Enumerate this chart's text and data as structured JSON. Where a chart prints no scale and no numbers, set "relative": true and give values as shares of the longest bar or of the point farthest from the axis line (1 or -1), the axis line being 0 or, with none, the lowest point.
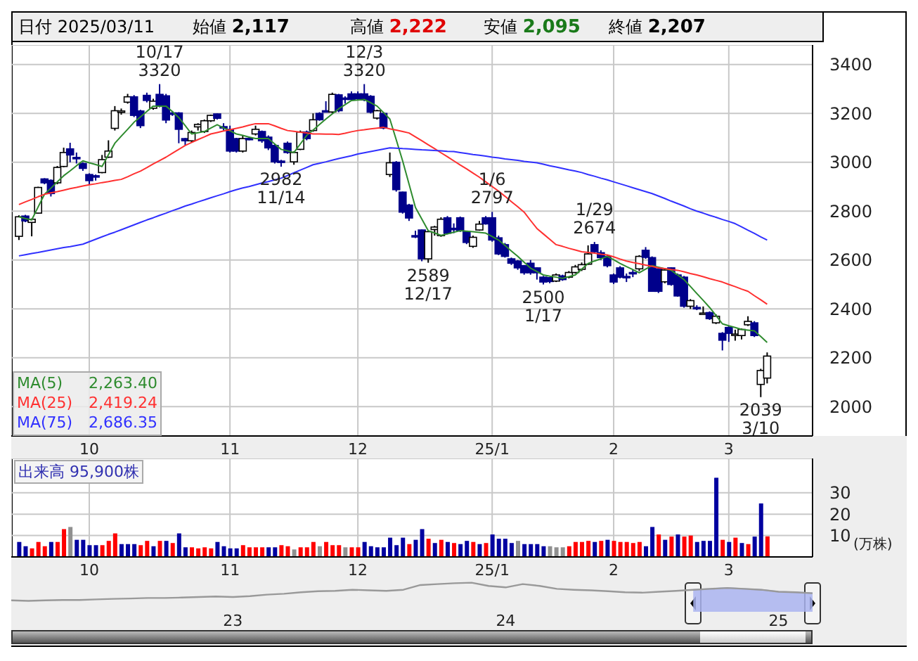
{
  "chart_data": [
    {
      "type": "other",
      "annotations": [
        "日付 2025/03/11",
        "始値 2,117",
        "高値 2,222",
        "安値 2,095",
        "終値 2,207"
      ]
    },
    {
      "type": "candlestick",
      "categories": [
        null,
        null,
        null,
        null,
        null,
        null,
        null,
        null,
        null,
        null,
        null,
        "10",
        null,
        null,
        null,
        null,
        null,
        null,
        null,
        null,
        null,
        null,
        null,
        null,
        null,
        null,
        null,
        null,
        null,
        null,
        null,
        null,
        null,
        "11",
        null,
        null,
        null,
        null,
        null,
        null,
        null,
        null,
        null,
        null,
        null,
        null,
        null,
        null,
        null,
        null,
        null,
        null,
        null,
        "12",
        null,
        null,
        null,
        null,
        null,
        null,
        null,
        null,
        null,
        null,
        null,
        null,
        null,
        null,
        null,
        null,
        null,
        null,
        null,
        null,
        "25/1",
        null,
        null,
        null,
        null,
        null,
        null,
        null,
        null,
        null,
        null,
        null,
        null,
        null,
        null,
        null,
        null,
        null,
        null,
        "2",
        null,
        null,
        null,
        null,
        null,
        null,
        null,
        null,
        null,
        null,
        null,
        null,
        null,
        null,
        null,
        null,
        null,
        "3",
        null,
        null,
        null,
        null,
        null,
        null
      ],
      "ohlc": [
        [
          2697,
          2783,
          2682,
          2777
        ],
        [
          2780,
          2785,
          2755,
          2760
        ],
        [
          2754,
          2770,
          2697,
          2767
        ],
        [
          2792,
          2900,
          2790,
          2897
        ],
        [
          2932,
          2935,
          2910,
          2916
        ],
        [
          2926,
          2930,
          2860,
          2872
        ],
        [
          2916,
          2985,
          2910,
          2979
        ],
        [
          2983,
          3060,
          2980,
          3040
        ],
        [
          3055,
          3080,
          3000,
          3030
        ],
        [
          3020,
          3040,
          2995,
          3015
        ],
        [
          2995,
          3000,
          2965,
          2975
        ],
        [
          2950,
          2955,
          2910,
          2925
        ],
        [
          2945,
          2950,
          2925,
          2940
        ],
        [
          2958,
          3030,
          2955,
          3011
        ],
        [
          3021,
          3090,
          3018,
          3046
        ],
        [
          3139,
          3230,
          3130,
          3211
        ],
        [
          3207,
          3220,
          3195,
          3210
        ],
        [
          3246,
          3280,
          3240,
          3268
        ],
        [
          3268,
          3275,
          3185,
          3192
        ],
        [
          3210,
          3215,
          3140,
          3150
        ],
        [
          3274,
          3285,
          3245,
          3253
        ],
        [
          3221,
          3260,
          3215,
          3250
        ],
        [
          3278,
          3320,
          3225,
          3230
        ],
        [
          3272,
          3280,
          3160,
          3173
        ],
        [
          3202,
          3210,
          3190,
          3200
        ],
        [
          3202,
          3205,
          3078,
          3135
        ],
        [
          3097,
          3100,
          3070,
          3088
        ],
        [
          3088,
          3130,
          3080,
          3122
        ],
        [
          3145,
          3160,
          3130,
          3155
        ],
        [
          3126,
          3175,
          3120,
          3170
        ],
        [
          3170,
          3195,
          3165,
          3192
        ],
        [
          3198,
          3200,
          3175,
          3180
        ],
        [
          3146,
          3160,
          3130,
          3144
        ],
        [
          3135,
          3150,
          3040,
          3046
        ],
        [
          3097,
          3100,
          3040,
          3046
        ],
        [
          3046,
          3110,
          3040,
          3097
        ],
        [
          3098,
          3105,
          3090,
          3096
        ],
        [
          3116,
          3150,
          3110,
          3135
        ],
        [
          3126,
          3130,
          3080,
          3088
        ],
        [
          3103,
          3110,
          3050,
          3059
        ],
        [
          3069,
          3075,
          2995,
          3002
        ],
        [
          3005,
          3010,
          2982,
          3003
        ],
        [
          3078,
          3085,
          3035,
          3040
        ],
        [
          3002,
          3045,
          2990,
          3040
        ],
        [
          3053,
          3130,
          3050,
          3124
        ],
        [
          3124,
          3130,
          3090,
          3097
        ],
        [
          3130,
          3200,
          3125,
          3174
        ],
        [
          3200,
          3205,
          3170,
          3174
        ],
        [
          3211,
          3250,
          3205,
          3209
        ],
        [
          3206,
          3285,
          3200,
          3278
        ],
        [
          3276,
          3280,
          3205,
          3211
        ],
        [
          3263,
          3270,
          3240,
          3262
        ],
        [
          3280,
          3290,
          3250,
          3257
        ],
        [
          3280,
          3290,
          3255,
          3260
        ],
        [
          3280,
          3320,
          3250,
          3255
        ],
        [
          3270,
          3275,
          3200,
          3205
        ],
        [
          3181,
          3215,
          3175,
          3211
        ],
        [
          3200,
          3205,
          3135,
          3140
        ],
        [
          2950,
          3040,
          2940,
          2998
        ],
        [
          3000,
          3005,
          2880,
          2888
        ],
        [
          2878,
          2880,
          2790,
          2796
        ],
        [
          2825,
          2830,
          2760,
          2772
        ],
        [
          2700,
          2720,
          2690,
          2698
        ],
        [
          2723,
          2725,
          2595,
          2605
        ],
        [
          2605,
          2720,
          2589,
          2716
        ],
        [
          2725,
          2740,
          2700,
          2735
        ],
        [
          2700,
          2775,
          2695,
          2767
        ],
        [
          2773,
          2780,
          2705,
          2710
        ],
        [
          2730,
          2750,
          2710,
          2728
        ],
        [
          2773,
          2778,
          2715,
          2720
        ],
        [
          2716,
          2720,
          2665,
          2672
        ],
        [
          2656,
          2700,
          2650,
          2693
        ],
        [
          2723,
          2760,
          2720,
          2747
        ],
        [
          2773,
          2780,
          2745,
          2748
        ],
        [
          2773,
          2797,
          2675,
          2682
        ],
        [
          2691,
          2700,
          2620,
          2625
        ],
        [
          2663,
          2670,
          2610,
          2615
        ],
        [
          2605,
          2610,
          2580,
          2587
        ],
        [
          2596,
          2600,
          2560,
          2568
        ],
        [
          2577,
          2580,
          2540,
          2548
        ],
        [
          2587,
          2600,
          2540,
          2548
        ],
        [
          2568,
          2570,
          2520,
          2548
        ],
        [
          2530,
          2535,
          2500,
          2510
        ],
        [
          2528,
          2530,
          2505,
          2512
        ],
        [
          2514,
          2545,
          2510,
          2539
        ],
        [
          2535,
          2540,
          2515,
          2520
        ],
        [
          2530,
          2555,
          2525,
          2549
        ],
        [
          2549,
          2580,
          2545,
          2572
        ],
        [
          2562,
          2590,
          2555,
          2581
        ],
        [
          2583,
          2660,
          2580,
          2625
        ],
        [
          2663,
          2674,
          2630,
          2634
        ],
        [
          2630,
          2640,
          2600,
          2610
        ],
        [
          2615,
          2620,
          2570,
          2577
        ],
        [
          2539,
          2545,
          2502,
          2510
        ],
        [
          2568,
          2575,
          2525,
          2530
        ],
        [
          2533,
          2545,
          2510,
          2532
        ],
        [
          2549,
          2560,
          2530,
          2548
        ],
        [
          2564,
          2620,
          2555,
          2615
        ],
        [
          2640,
          2653,
          2605,
          2611
        ],
        [
          2610,
          2615,
          2470,
          2472
        ],
        [
          2564,
          2570,
          2465,
          2472
        ],
        [
          2511,
          2565,
          2505,
          2559
        ],
        [
          2568,
          2570,
          2495,
          2500
        ],
        [
          2539,
          2545,
          2450,
          2453
        ],
        [
          2530,
          2535,
          2405,
          2411
        ],
        [
          2411,
          2440,
          2400,
          2434
        ],
        [
          2406,
          2415,
          2395,
          2405
        ],
        [
          2382,
          2410,
          2375,
          2383
        ],
        [
          2385,
          2390,
          2355,
          2360
        ],
        [
          2343,
          2378,
          2338,
          2370
        ],
        [
          2300,
          2305,
          2230,
          2272
        ],
        [
          2324,
          2330,
          2265,
          2300
        ],
        [
          2296,
          2315,
          2270,
          2297
        ],
        [
          2291,
          2320,
          2275,
          2316
        ],
        [
          2335,
          2370,
          2330,
          2349
        ],
        [
          2343,
          2350,
          2285,
          2291
        ],
        [
          2091,
          2155,
          2039,
          2148
        ],
        [
          2117,
          2222,
          2095,
          2207
        ]
      ],
      "series": [
        {
          "name": "MA(5)",
          "type": "line",
          "color": "#2e8b2e",
          "values": [
            2777,
            2770,
            2764,
            2817,
            2869,
            2894,
            2920,
            2945,
            2965,
            2986,
            3006,
            2998,
            2991,
            2983,
            3031,
            3078,
            3107,
            3135,
            3164,
            3186,
            3208,
            3230,
            3230,
            3230,
            3207,
            3183,
            3150,
            3116,
            3121,
            3126,
            3140,
            3154,
            3141,
            3129,
            3116,
            3110,
            3103,
            3097,
            3097,
            3097,
            3075,
            3053,
            3047,
            3040,
            3075,
            3110,
            3132,
            3155,
            3177,
            3198,
            3219,
            3236,
            3253,
            3255,
            3257,
            3244,
            3230,
            3204,
            3177,
            3092,
            3006,
            2911,
            2815,
            2768,
            2720,
            2711,
            2701,
            2707,
            2714,
            2720,
            2718,
            2716,
            2713,
            2710,
            2696,
            2682,
            2660,
            2637,
            2615,
            2591,
            2567,
            2553,
            2539,
            2534,
            2530,
            2525,
            2532,
            2539,
            2563,
            2586,
            2596,
            2605,
            2615,
            2601,
            2586,
            2573,
            2561,
            2548,
            2563,
            2577,
            2571,
            2564,
            2558,
            2539,
            2520,
            2492,
            2463,
            2435,
            2406,
            2373,
            2339,
            2331,
            2324,
            2316,
            2313,
            2310,
            2287,
            2263
          ]
        },
        {
          "name": "MA(25)",
          "type": "line",
          "color": "#ff3030",
          "values": [
            2827,
            2838,
            2848,
            2859,
            2869,
            2875,
            2880,
            2886,
            2892,
            2897,
            2903,
            2908,
            2912,
            2917,
            2921,
            2926,
            2930,
            2941,
            2953,
            2964,
            2978,
            2993,
            3007,
            3021,
            3037,
            3053,
            3069,
            3081,
            3093,
            3104,
            3116,
            3122,
            3128,
            3133,
            3139,
            3145,
            3152,
            3158,
            3158,
            3158,
            3149,
            3139,
            3130,
            3127,
            3123,
            3120,
            3116,
            3116,
            3115,
            3115,
            3114,
            3119,
            3125,
            3130,
            3133,
            3137,
            3140,
            3143,
            3137,
            3132,
            3126,
            3120,
            3104,
            3088,
            3072,
            3056,
            3039,
            3023,
            3006,
            2989,
            2973,
            2956,
            2939,
            2920,
            2901,
            2882,
            2861,
            2839,
            2818,
            2796,
            2762,
            2729,
            2707,
            2685,
            2663,
            2656,
            2648,
            2641,
            2634,
            2631,
            2628,
            2624,
            2621,
            2613,
            2604,
            2596,
            2590,
            2585,
            2579,
            2574,
            2568,
            2565,
            2561,
            2558,
            2552,
            2545,
            2539,
            2532,
            2524,
            2517,
            2510,
            2500,
            2491,
            2481,
            2472,
            2454,
            2437,
            2419
          ]
        },
        {
          "name": "MA(75)",
          "type": "line",
          "color": "#3030ff",
          "values": [
            2617,
            2622,
            2627,
            2631,
            2636,
            2641,
            2646,
            2651,
            2655,
            2660,
            2665,
            2675,
            2685,
            2695,
            2705,
            2714,
            2724,
            2734,
            2744,
            2754,
            2764,
            2773,
            2783,
            2792,
            2802,
            2811,
            2821,
            2829,
            2838,
            2846,
            2855,
            2863,
            2871,
            2880,
            2888,
            2895,
            2901,
            2908,
            2915,
            2921,
            2928,
            2935,
            2946,
            2957,
            2968,
            2979,
            2990,
            2996,
            3002,
            3009,
            3015,
            3021,
            3027,
            3034,
            3039,
            3044,
            3049,
            3054,
            3059,
            3058,
            3056,
            3055,
            3053,
            3051,
            3050,
            3048,
            3047,
            3045,
            3044,
            3040,
            3036,
            3032,
            3029,
            3025,
            3021,
            3018,
            3014,
            3011,
            3008,
            3004,
            3001,
            2998,
            2992,
            2986,
            2981,
            2975,
            2969,
            2964,
            2958,
            2950,
            2943,
            2935,
            2928,
            2920,
            2912,
            2904,
            2896,
            2888,
            2880,
            2872,
            2862,
            2852,
            2841,
            2831,
            2821,
            2810,
            2800,
            2792,
            2783,
            2775,
            2766,
            2758,
            2749,
            2736,
            2722,
            2709,
            2695,
            2682
          ]
        }
      ],
      "ylim": [
        1880,
        3480
      ],
      "yticks": [
        2000,
        2200,
        2400,
        2600,
        2800,
        3000,
        3200,
        3400
      ],
      "grid": true,
      "legend": "bottom left",
      "annotations": [
        {
          "text": "10/17\n3320",
          "y": 3320
        },
        {
          "text": "2982\n11/14",
          "y": 2982
        },
        {
          "text": "12/3\n3320",
          "y": 3320
        },
        {
          "text": "2589\n12/17",
          "y": 2589
        },
        {
          "text": "1/6\n2797",
          "y": 2797
        },
        {
          "text": "2500\n1/17",
          "y": 2500
        },
        {
          "text": "1/29\n2674",
          "y": 2674
        },
        {
          "text": "2039\n3/10",
          "y": 2039
        },
        "2,263.40",
        "2,419.24",
        "2,686.35"
      ]
    },
    {
      "type": "bar",
      "title": "出来高 95,900株",
      "ylabel": "(万株)",
      "categories": [
        null,
        null,
        null,
        null,
        null,
        null,
        null,
        null,
        null,
        null,
        null,
        "10",
        null,
        null,
        null,
        null,
        null,
        null,
        null,
        null,
        null,
        null,
        null,
        null,
        null,
        null,
        null,
        null,
        null,
        null,
        null,
        null,
        null,
        "11",
        null,
        null,
        null,
        null,
        null,
        null,
        null,
        null,
        null,
        null,
        null,
        null,
        null,
        null,
        null,
        null,
        null,
        null,
        null,
        "12",
        null,
        null,
        null,
        null,
        null,
        null,
        null,
        null,
        null,
        null,
        null,
        null,
        null,
        null,
        null,
        null,
        null,
        null,
        null,
        null,
        "25/1",
        null,
        null,
        null,
        null,
        null,
        null,
        null,
        null,
        null,
        null,
        null,
        null,
        null,
        null,
        null,
        null,
        null,
        null,
        "2",
        null,
        null,
        null,
        null,
        null,
        null,
        null,
        null,
        null,
        null,
        null,
        null,
        null,
        null,
        null,
        null,
        null,
        "3",
        null,
        null,
        null,
        null,
        null,
        null
      ],
      "values": [
        7,
        5,
        4,
        7,
        5,
        7,
        7,
        13,
        14,
        8,
        8,
        5.5,
        5.5,
        5.5,
        7.5,
        11,
        6,
        6,
        6,
        5.5,
        7.5,
        5,
        7.5,
        7.5,
        6.5,
        11,
        4.5,
        4.5,
        4,
        4.5,
        4,
        7,
        5,
        4,
        4,
        5.5,
        4.5,
        4.5,
        4.5,
        4.5,
        4.5,
        5.5,
        5,
        3.5,
        4.5,
        4.5,
        7,
        5,
        7,
        5.5,
        5.5,
        4.5,
        4.5,
        4.5,
        7,
        5,
        4.5,
        4.5,
        9,
        5.5,
        9,
        6,
        8,
        13,
        8.5,
        6.5,
        8,
        7,
        6.5,
        6,
        7.5,
        7,
        6,
        6.5,
        10.5,
        8.5,
        8.5,
        6.5,
        7.5,
        6,
        6,
        6,
        5,
        5,
        4.5,
        4.5,
        5,
        7,
        7,
        7.5,
        7,
        7.5,
        8,
        7.5,
        7,
        7,
        6.5,
        7,
        5,
        14,
        10.5,
        8,
        9.5,
        10.5,
        9.5,
        10,
        7,
        7.5,
        7.5,
        37,
        8,
        7,
        9,
        6.5,
        6,
        9.5,
        25,
        9.59
      ],
      "colors": [
        "#0000a0",
        "#0000a0",
        "#ff0000",
        "#ff0000",
        "#ff0000",
        "#0000a0",
        "#ff0000",
        "#ff0000",
        "#909090",
        "#0000a0",
        "#0000a0",
        "#0000a0",
        "#0000a0",
        "#ff0000",
        "#ff0000",
        "#ff0000",
        "#0000a0",
        "#0000a0",
        "#0000a0",
        "#ff0000",
        "#ff0000",
        "#0000a0",
        "#ff0000",
        "#0000a0",
        "#ff0000",
        "#0000a0",
        "#0000a0",
        "#ff0000",
        "#ff0000",
        "#ff0000",
        "#ff0000",
        "#0000a0",
        "#0000a0",
        "#0000a0",
        "#0000a0",
        "#ff0000",
        "#ff0000",
        "#ff0000",
        "#ff0000",
        "#0000a0",
        "#0000a0",
        "#ff0000",
        "#ff0000",
        "#909090",
        "#ff0000",
        "#ff0000",
        "#ff0000",
        "#909090",
        "#ff0000",
        "#ff0000",
        "#ff0000",
        "#909090",
        "#ff0000",
        "#ff0000",
        "#0000a0",
        "#0000a0",
        "#0000a0",
        "#0000a0",
        "#0000a0",
        "#0000a0",
        "#0000a0",
        "#ff0000",
        "#0000a0",
        "#0000a0",
        "#ff0000",
        "#0000a0",
        "#ff0000",
        "#0000a0",
        "#ff0000",
        "#0000a0",
        "#0000a0",
        "#ff0000",
        "#0000a0",
        "#ff0000",
        "#0000a0",
        "#0000a0",
        "#0000a0",
        "#0000a0",
        "#909090",
        "#0000a0",
        "#0000a0",
        "#0000a0",
        "#0000a0",
        "#909090",
        "#909090",
        "#909090",
        "#ff0000",
        "#ff0000",
        "#ff0000",
        "#ff0000",
        "#0000a0",
        "#ff0000",
        "#0000a0",
        "#ff0000",
        "#ff0000",
        "#ff0000",
        "#ff0000",
        "#ff0000",
        "#0000a0",
        "#0000a0",
        "#ff0000",
        "#0000a0",
        "#ff0000",
        "#0000a0",
        "#ff0000",
        "#ff0000",
        "#0000a0",
        "#0000a0",
        "#0000a0",
        "#0000a0",
        "#ff0000",
        "#0000a0",
        "#ff0000",
        "#0000a0",
        "#ff0000",
        "#0000a0",
        "#0000a0",
        "#ff0000"
      ],
      "ylim": [
        0,
        46
      ],
      "yticks": [
        10,
        20,
        30
      ],
      "grid": true
    },
    {
      "type": "line",
      "relative": true,
      "categories": [
        null,
        null,
        null,
        null,
        null,
        null,
        null,
        null,
        null,
        null,
        null,
        null,
        null,
        "23",
        null,
        null,
        null,
        null,
        null,
        null,
        null,
        null,
        null,
        null,
        null,
        null,
        null,
        null,
        null,
        "24",
        null,
        null,
        null,
        null,
        null,
        null,
        null,
        null,
        null,
        null,
        null,
        null,
        null,
        null,
        null,
        "25",
        null,
        null
      ],
      "series": [
        {
          "color": "#999999",
          "type": "line",
          "values": [
            0.03,
            0,
            0.03,
            0.05,
            0.05,
            0.08,
            0.11,
            0.13,
            0.16,
            0.16,
            0.18,
            0.21,
            0.24,
            0.21,
            0.26,
            0.34,
            0.39,
            0.47,
            0.53,
            0.55,
            0.61,
            0.58,
            0.55,
            0.61,
            0.87,
            0.92,
            0.97,
            1,
            0.82,
            0.74,
            0.92,
            0.82,
            0.66,
            0.61,
            0.58,
            0.53,
            0.47,
            0.45,
            0.5,
            0.55,
            0.61,
            0.66,
            0.71,
            0.66,
            0.61,
            0.5,
            0.47,
            0.42
          ]
        },
        {
          "color": "#aab4f0",
          "type": "area",
          "values": [
            null,
            null,
            null,
            null,
            null,
            null,
            null,
            null,
            null,
            null,
            null,
            null,
            null,
            null,
            null,
            null,
            null,
            null,
            null,
            null,
            null,
            null,
            null,
            null,
            null,
            null,
            null,
            null,
            null,
            null,
            null,
            null,
            null,
            null,
            null,
            null,
            null,
            null,
            null,
            null,
            0.61,
            0.66,
            0.71,
            0.66,
            0.61,
            0.5,
            0.47,
            0.42
          ]
        }
      ]
    }
  ]
}
